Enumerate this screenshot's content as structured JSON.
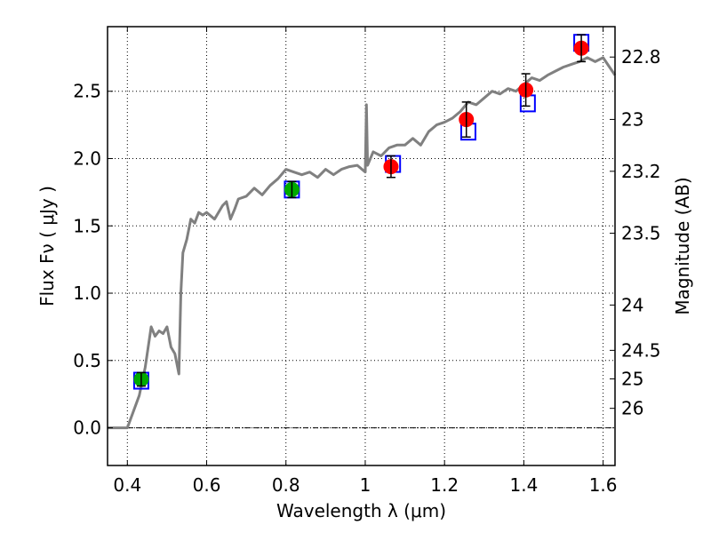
{
  "chart_data": {
    "type": "line",
    "xlabel": "Wavelength  λ (μm)",
    "ylabel_left": "Flux  Fν  ( μJy )",
    "ylabel_right": "Magnitude (AB)",
    "xlim": [
      0.35,
      1.63
    ],
    "ylim": [
      -0.28,
      2.98
    ],
    "x_ticks": [
      0.4,
      0.6,
      0.8,
      1.0,
      1.2,
      1.4,
      1.6
    ],
    "x_tick_labels": [
      "0.4",
      "0.6",
      "0.8",
      "1",
      "1.2",
      "1.4",
      "1.6"
    ],
    "y_ticks": [
      0.0,
      0.5,
      1.0,
      1.5,
      2.0,
      2.5
    ],
    "y_tick_labels": [
      "0.0",
      "0.5",
      "1.0",
      "1.5",
      "2.0",
      "2.5"
    ],
    "y2_tick_labels": [
      "22.8",
      "23",
      "23.2",
      "23.5",
      "24",
      "24.5",
      "25",
      "26"
    ],
    "grid": true,
    "zero_line": true,
    "colors": {
      "model": "#808080",
      "model_points": "#0000ff",
      "observed_hst": "#00aa00",
      "observed_ir": "#ff0000",
      "errorbar": "#000000"
    },
    "series": [
      {
        "kind": "line",
        "x": [
          0.35,
          0.4,
          0.43,
          0.445,
          0.46,
          0.47,
          0.48,
          0.49,
          0.5,
          0.51,
          0.52,
          0.53,
          0.535,
          0.54,
          0.55,
          0.56,
          0.57,
          0.58,
          0.59,
          0.6,
          0.62,
          0.64,
          0.65,
          0.66,
          0.67,
          0.68,
          0.7,
          0.72,
          0.74,
          0.76,
          0.78,
          0.8,
          0.82,
          0.84,
          0.86,
          0.88,
          0.9,
          0.92,
          0.94,
          0.96,
          0.98,
          1.0,
          1.003,
          1.006,
          1.02,
          1.04,
          1.06,
          1.08,
          1.1,
          1.12,
          1.14,
          1.16,
          1.18,
          1.2,
          1.22,
          1.24,
          1.26,
          1.28,
          1.3,
          1.32,
          1.34,
          1.36,
          1.38,
          1.4,
          1.42,
          1.44,
          1.46,
          1.48,
          1.5,
          1.52,
          1.54,
          1.56,
          1.58,
          1.6,
          1.63
        ],
        "y": [
          0.0,
          0.0,
          0.24,
          0.45,
          0.75,
          0.68,
          0.72,
          0.7,
          0.75,
          0.6,
          0.55,
          0.4,
          1.0,
          1.3,
          1.4,
          1.55,
          1.52,
          1.6,
          1.58,
          1.6,
          1.55,
          1.65,
          1.68,
          1.55,
          1.62,
          1.7,
          1.72,
          1.78,
          1.73,
          1.8,
          1.85,
          1.92,
          1.9,
          1.88,
          1.9,
          1.86,
          1.92,
          1.88,
          1.92,
          1.94,
          1.95,
          1.9,
          2.4,
          1.95,
          2.05,
          2.02,
          2.08,
          2.1,
          2.1,
          2.15,
          2.1,
          2.2,
          2.25,
          2.27,
          2.3,
          2.35,
          2.42,
          2.4,
          2.45,
          2.5,
          2.48,
          2.52,
          2.5,
          2.55,
          2.6,
          2.58,
          2.62,
          2.65,
          2.68,
          2.7,
          2.72,
          2.75,
          2.72,
          2.75,
          2.62
        ]
      },
      {
        "kind": "model-boxes",
        "x": [
          0.435,
          0.815,
          1.07,
          1.26,
          1.41,
          1.545
        ],
        "y": [
          0.35,
          1.77,
          1.96,
          2.2,
          2.41,
          2.86
        ]
      },
      {
        "kind": "points",
        "color": "observed_hst",
        "x": [
          0.435,
          0.815
        ],
        "y": [
          0.36,
          1.77
        ],
        "yerr": [
          0.05,
          0.06
        ]
      },
      {
        "kind": "points",
        "color": "observed_ir",
        "x": [
          1.065,
          1.255,
          1.405,
          1.545
        ],
        "y": [
          1.94,
          2.29,
          2.51,
          2.82
        ],
        "yerr": [
          0.08,
          0.13,
          0.12,
          0.1
        ]
      }
    ]
  }
}
